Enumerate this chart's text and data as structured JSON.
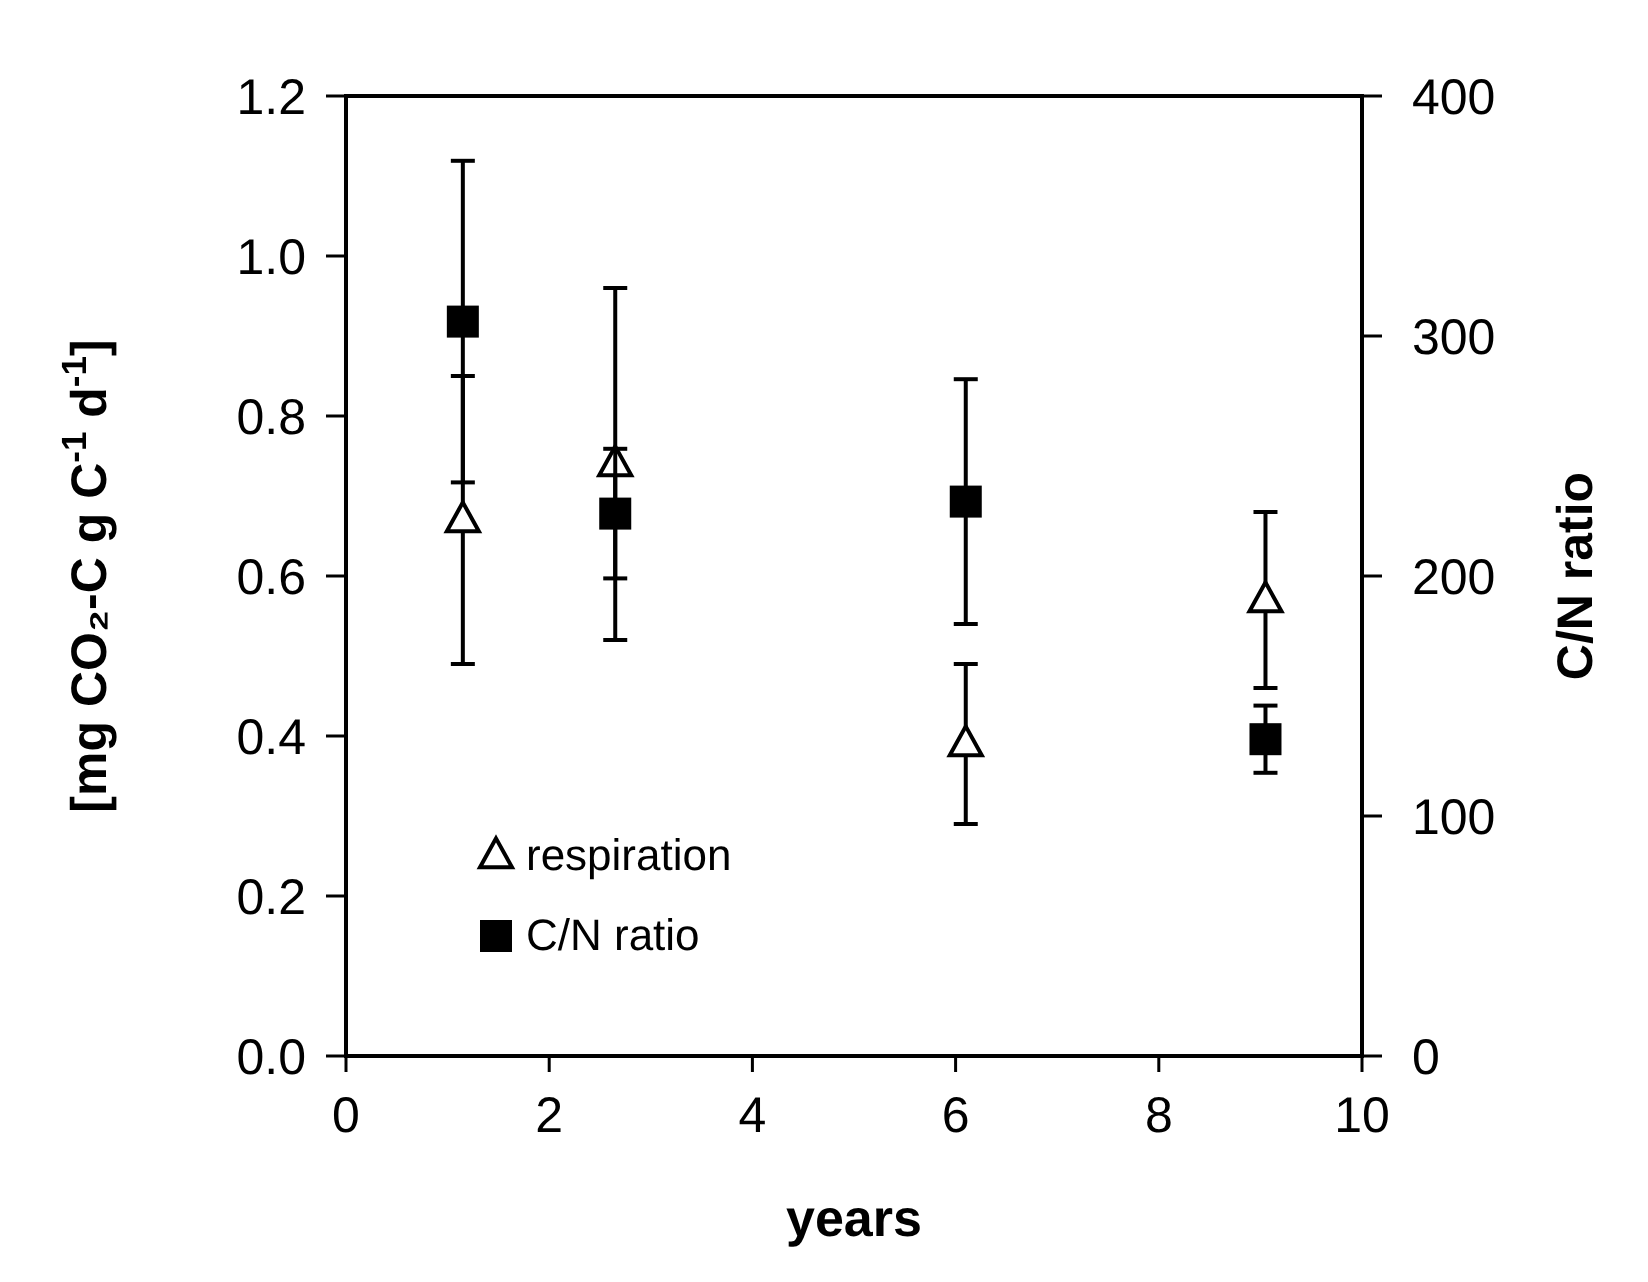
{
  "chart_data": {
    "type": "scatter",
    "xlabel": "years",
    "ylabel": "[mg CO₂-C g C$^{-1}$ d$^{-1}$]",
    "y2label": "C/N ratio",
    "x": [
      1.15,
      2.65,
      6.1,
      9.05
    ],
    "xlim": [
      0,
      10
    ],
    "xticks": [
      0,
      2,
      4,
      6,
      8,
      10
    ],
    "ylim": [
      0,
      1.2
    ],
    "yticks": [
      {
        "value": 0,
        "label": "0.0"
      },
      0.2,
      0.4,
      0.6,
      0.8,
      {
        "value": 1,
        "label": "1.0"
      },
      1.2
    ],
    "y2lim": [
      0,
      400
    ],
    "y2ticks": [
      0,
      100,
      200,
      300,
      400
    ],
    "grid": false,
    "legend": "bottom left",
    "series": [
      {
        "name": "respiration",
        "color": "#000000",
        "marker": "triangle",
        "values": [
          0.67,
          0.74,
          0.39,
          0.57
        ],
        "errors": [
          0.18,
          0.22,
          0.1,
          0.11
        ]
      },
      {
        "name": "C/N ratio",
        "color": "#000000",
        "marker": "square",
        "axis": "y2",
        "values": [
          306,
          226,
          231,
          132
        ],
        "errors": [
          67,
          27,
          51,
          14
        ]
      }
    ]
  }
}
